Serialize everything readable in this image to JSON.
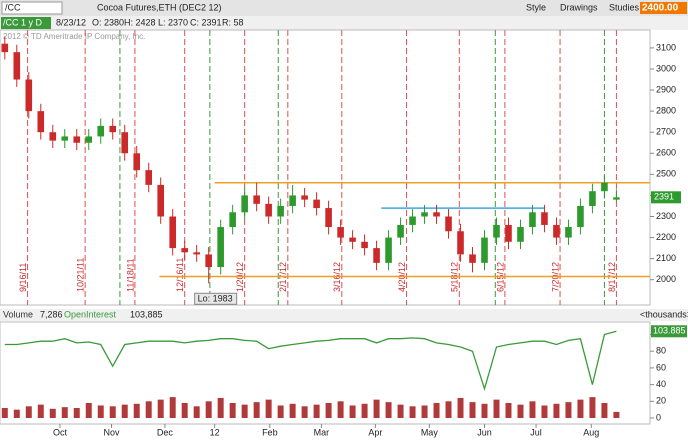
{
  "toolbar": {
    "symbol": "/CC",
    "buttons": [
      "Style",
      "Drawings",
      "Studies"
    ],
    "price": "2400.00"
  },
  "chart_data": [
    {
      "type": "candlestick",
      "title": "Cocoa Futures,ETH (DEC2 12)",
      "info": [
        "/CC 1 y D",
        "8/23/12",
        "O: 2380",
        "H: 2428",
        "L: 2370",
        "C: 2391",
        "R: 58"
      ],
      "copyright": "2012 © TD Ameritrade IP Company, Inc.",
      "x": [
        0,
        1,
        2,
        3,
        4,
        5,
        6,
        7,
        8,
        9,
        10,
        11,
        12,
        13,
        14,
        15,
        16,
        17,
        18,
        19,
        20,
        21,
        22,
        23,
        24,
        25,
        26,
        27,
        28,
        29,
        30,
        31,
        32,
        33,
        34,
        35,
        36,
        37,
        38,
        39,
        40,
        41,
        42,
        43,
        44,
        45,
        46,
        47,
        48,
        49,
        50,
        51
      ],
      "open": [
        3120,
        3080,
        2950,
        2800,
        2700,
        2660,
        2680,
        2650,
        2680,
        2730,
        2700,
        2600,
        2520,
        2450,
        2300,
        2150,
        2130,
        2120,
        2060,
        2250,
        2320,
        2400,
        2360,
        2300,
        2350,
        2400,
        2380,
        2340,
        2250,
        2200,
        2180,
        2150,
        2080,
        2200,
        2260,
        2300,
        2320,
        2300,
        2230,
        2120,
        2080,
        2200,
        2260,
        2180,
        2250,
        2320,
        2260,
        2200,
        2250,
        2350,
        2420,
        2380
      ],
      "high": [
        3155,
        3115,
        2985,
        2835,
        2735,
        2715,
        2715,
        2715,
        2765,
        2765,
        2735,
        2635,
        2555,
        2485,
        2335,
        2185,
        2165,
        2155,
        2285,
        2355,
        2435,
        2460,
        2395,
        2385,
        2450,
        2435,
        2415,
        2375,
        2285,
        2235,
        2215,
        2185,
        2235,
        2295,
        2335,
        2355,
        2355,
        2335,
        2265,
        2155,
        2235,
        2295,
        2295,
        2285,
        2355,
        2355,
        2295,
        2285,
        2385,
        2455,
        2495,
        2428
      ],
      "low": [
        3045,
        2915,
        2765,
        2665,
        2625,
        2625,
        2615,
        2615,
        2645,
        2665,
        2565,
        2485,
        2415,
        2265,
        2115,
        2095,
        2085,
        1983,
        2025,
        2215,
        2285,
        2325,
        2265,
        2265,
        2315,
        2345,
        2305,
        2215,
        2165,
        2145,
        2115,
        2045,
        2045,
        2165,
        2225,
        2265,
        2265,
        2195,
        2085,
        2035,
        2045,
        2165,
        2145,
        2145,
        2215,
        2225,
        2165,
        2165,
        2215,
        2315,
        2385,
        2370
      ],
      "close": [
        3080,
        2950,
        2800,
        2700,
        2660,
        2680,
        2650,
        2680,
        2730,
        2700,
        2600,
        2520,
        2450,
        2300,
        2150,
        2130,
        2120,
        2060,
        2250,
        2320,
        2400,
        2360,
        2300,
        2350,
        2400,
        2380,
        2340,
        2250,
        2200,
        2180,
        2150,
        2080,
        2200,
        2260,
        2300,
        2320,
        2300,
        2230,
        2120,
        2080,
        2200,
        2260,
        2180,
        2250,
        2320,
        2260,
        2200,
        2250,
        2350,
        2420,
        2460,
        2391
      ],
      "up_color": "#2e9a2e",
      "down_color": "#cc2a2a",
      "xlim": [
        -0.4,
        53.8
      ],
      "ylim": [
        1880,
        3185
      ],
      "yticks": [
        2000,
        2100,
        2200,
        2300,
        2400,
        2500,
        2600,
        2700,
        2800,
        2900,
        3000,
        3100
      ],
      "low_label": "Lo: 1983",
      "levels": [
        {
          "value": 2460,
          "from": 17.5,
          "to": 53.8,
          "color": "#f0a020"
        },
        {
          "value": 2015,
          "from": 12.9,
          "to": 53.8,
          "color": "#f0a020"
        },
        {
          "value": 2340,
          "from": 31.4,
          "to": 45,
          "color": "#3aa8e0"
        }
      ],
      "events": [
        {
          "x": 1.9,
          "label": "9/16/11"
        },
        {
          "x": 6.7,
          "label": "10/21/11"
        },
        {
          "x": 10.85,
          "label": "11/18/11"
        },
        {
          "x": 15,
          "label": "12/16/11"
        },
        {
          "x": 20,
          "label": "1/20/12"
        },
        {
          "x": 23.6,
          "label": "2/17/12"
        },
        {
          "x": 28.1,
          "label": "3/16/12"
        },
        {
          "x": 33.5,
          "label": "4/20/12"
        },
        {
          "x": 37.9,
          "label": "5/18/12"
        },
        {
          "x": 41.7,
          "label": "6/15/12"
        },
        {
          "x": 46.3,
          "label": "7/20/12"
        },
        {
          "x": 51,
          "label": "8/17/12"
        }
      ],
      "green_events": [
        9.6,
        17.1,
        22.8,
        40.9,
        50
      ]
    },
    {
      "type": "volume",
      "x": [
        0,
        1,
        2,
        3,
        4,
        5,
        6,
        7,
        8,
        9,
        10,
        11,
        12,
        13,
        14,
        15,
        16,
        17,
        18,
        19,
        20,
        21,
        22,
        23,
        24,
        25,
        26,
        27,
        28,
        29,
        30,
        31,
        32,
        33,
        34,
        35,
        36,
        37,
        38,
        39,
        40,
        41,
        42,
        43,
        44,
        45,
        46,
        47,
        48,
        49,
        50,
        51
      ],
      "unit": "<thousands>",
      "series": [
        {
          "name": "Volume",
          "color": "#b03a3a",
          "current_label": "7,286",
          "values": [
            12,
            10,
            14,
            16,
            11,
            13,
            12,
            18,
            15,
            14,
            16,
            17,
            20,
            22,
            25,
            18,
            14,
            20,
            24,
            18,
            16,
            19,
            22,
            15,
            17,
            14,
            16,
            18,
            20,
            15,
            17,
            22,
            19,
            16,
            14,
            15,
            18,
            20,
            24,
            19,
            17,
            22,
            18,
            16,
            20,
            15,
            17,
            19,
            22,
            25,
            18,
            7.286
          ]
        },
        {
          "name": "OpenInterest",
          "color": "#3a9a3a",
          "current_label": "103,885",
          "values": [
            88,
            88,
            90,
            92,
            92,
            95,
            90,
            91,
            88,
            62,
            88,
            90,
            92,
            92,
            92,
            90,
            92,
            93,
            95,
            95,
            93,
            92,
            83,
            86,
            88,
            90,
            92,
            93,
            95,
            95,
            95,
            90,
            95,
            95,
            96,
            95,
            90,
            88,
            85,
            80,
            35,
            85,
            88,
            90,
            92,
            92,
            88,
            93,
            95,
            40,
            100,
            103.885
          ]
        }
      ],
      "xlim": [
        -0.4,
        53.8
      ],
      "ylim": [
        0,
        115
      ],
      "yticks": [
        0,
        20,
        40,
        60,
        80,
        100
      ],
      "xticks": [
        {
          "value": 4.6,
          "label": "Oct"
        },
        {
          "value": 8.9,
          "label": "Nov"
        },
        {
          "value": 13.35,
          "label": "Dec"
        },
        {
          "value": 17.5,
          "label": "12"
        },
        {
          "value": 22.1,
          "label": "Feb"
        },
        {
          "value": 26.4,
          "label": "Mar"
        },
        {
          "value": 30.9,
          "label": "Apr"
        },
        {
          "value": 35.4,
          "label": "May"
        },
        {
          "value": 40,
          "label": "Jun"
        },
        {
          "value": 44.3,
          "label": "Jul"
        },
        {
          "value": 48.9,
          "label": "Aug"
        }
      ]
    }
  ]
}
